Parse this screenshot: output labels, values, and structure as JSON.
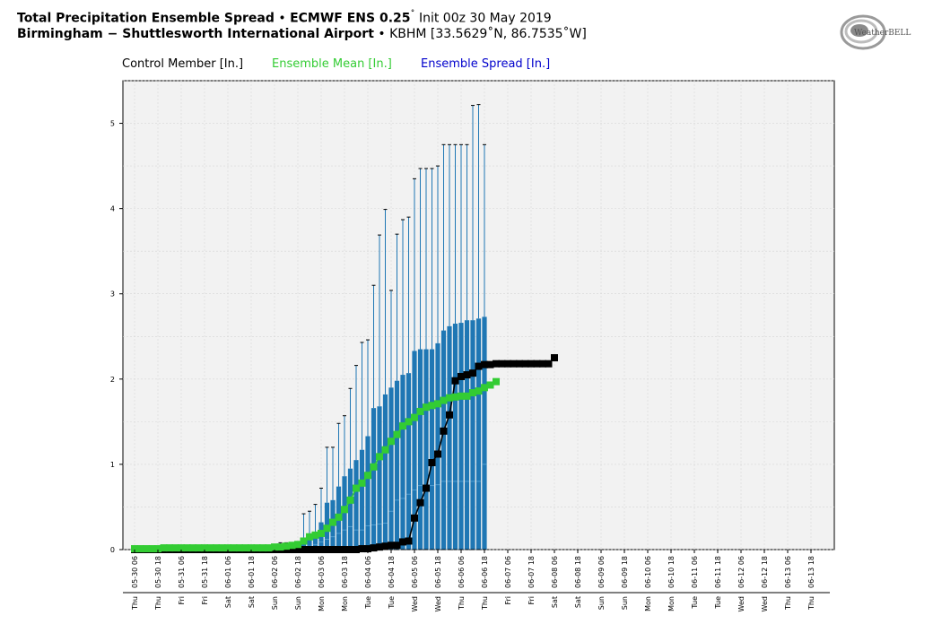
{
  "header": {
    "title_bold": "Total Precipitation Ensemble Spread",
    "title_model": "ECMWF ENS 0.25",
    "title_init": "Init 00z 30 May 2019",
    "location_bold": "Birmingham − Shuttlesworth International Airport",
    "location_detail": "KBHM [33.5629˚N, 86.7535˚W]",
    "separator": "•",
    "degree": "˚"
  },
  "legend": {
    "control": "Control Member [In.]",
    "mean": "Ensemble Mean [In.]",
    "spread": "Ensemble Spread [In.]"
  },
  "logo": {
    "text": "WeatherBELL",
    "icon": "swirl-logo-icon"
  },
  "colors": {
    "control": "#000000",
    "mean": "#33cc33",
    "spread_fill": "#1f77b4",
    "spread_text": "#0000cc",
    "plot_bg": "#f2f2f2"
  },
  "chart_data": {
    "type": "box",
    "ylim": [
      0,
      5.5
    ],
    "yticks": [
      "0",
      "1",
      "2",
      "3",
      "4",
      "5"
    ],
    "grid": true,
    "legend_position": "top",
    "x": [
      "05-30 06",
      "05-30 18",
      "05-31 06",
      "05-31 18",
      "06-01 06",
      "06-01 18",
      "06-02 06",
      "06-02 18",
      "06-03 06",
      "06-03 18",
      "06-04 06",
      "06-04 18",
      "06-05 06",
      "06-05 18",
      "06-06 06",
      "06-06 18",
      "06-07 06",
      "06-07 18",
      "06-08 06",
      "06-08 18",
      "06-09 06",
      "06-09 18",
      "06-10 06",
      "06-10 18",
      "06-11 06",
      "06-11 18",
      "06-12 06",
      "06-12 18",
      "06-13 06",
      "06-13 18"
    ],
    "days": [
      "Thu",
      "Thu",
      "Fri",
      "Fri",
      "Sat",
      "Sat",
      "Sun",
      "Sun",
      "Mon",
      "Mon",
      "Tue",
      "Tue",
      "Wed",
      "Wed",
      "Thu",
      "Thu",
      "Fri",
      "Fri",
      "Sat",
      "Sat",
      "Sun",
      "Sun",
      "Mon",
      "Mon",
      "Tue",
      "Tue",
      "Wed",
      "Wed",
      "Thu",
      "Thu"
    ],
    "series": [
      {
        "name": "Control Member [In.]",
        "values": [
          0,
          0,
          0,
          0,
          0,
          0,
          0,
          0,
          0,
          0,
          0,
          0,
          0,
          0,
          0,
          0,
          0,
          0,
          0,
          0,
          0,
          0,
          0,
          0,
          0,
          0,
          0,
          0,
          0,
          0,
          0,
          0,
          0,
          0,
          0,
          0,
          0,
          0,
          0,
          0.01,
          0.01,
          0.02,
          0.03,
          0.04,
          0.05,
          0.05,
          0.09,
          0.1,
          0.37,
          0.55,
          0.72,
          1.02,
          1.12,
          1.39,
          1.58,
          1.98,
          2.03,
          2.05,
          2.07,
          2.15,
          2.17,
          2.17,
          2.18,
          2.18,
          2.18,
          2.18,
          2.18,
          2.18,
          2.18,
          2.18,
          2.18,
          2.18,
          2.25
        ]
      },
      {
        "name": "Ensemble Mean [In.]",
        "values": [
          0.01,
          0.01,
          0.01,
          0.01,
          0.01,
          0.02,
          0.02,
          0.02,
          0.02,
          0.02,
          0.02,
          0.02,
          0.02,
          0.02,
          0.02,
          0.02,
          0.02,
          0.02,
          0.02,
          0.02,
          0.02,
          0.02,
          0.02,
          0.02,
          0.03,
          0.03,
          0.04,
          0.05,
          0.06,
          0.1,
          0.15,
          0.17,
          0.19,
          0.25,
          0.32,
          0.38,
          0.47,
          0.58,
          0.72,
          0.78,
          0.87,
          0.97,
          1.09,
          1.17,
          1.27,
          1.35,
          1.45,
          1.5,
          1.55,
          1.62,
          1.67,
          1.69,
          1.71,
          1.75,
          1.78,
          1.79,
          1.8,
          1.8,
          1.84,
          1.86,
          1.9,
          1.93,
          1.97
        ]
      },
      {
        "name": "Ensemble Spread [In.]",
        "boxes": [
          [
            0,
            0,
            0,
            0,
            0
          ],
          [
            0,
            0,
            0,
            0,
            0
          ],
          [
            0,
            0,
            0,
            0,
            0
          ],
          [
            0,
            0,
            0,
            0,
            0
          ],
          [
            0,
            0,
            0,
            0,
            0
          ],
          [
            0,
            0,
            0,
            0,
            0
          ],
          [
            0,
            0,
            0,
            0,
            0
          ],
          [
            0,
            0,
            0,
            0,
            0
          ],
          [
            0,
            0,
            0,
            0,
            0
          ],
          [
            0,
            0,
            0,
            0,
            0
          ],
          [
            0,
            0,
            0,
            0,
            0
          ],
          [
            0,
            0,
            0,
            0,
            0
          ],
          [
            0,
            0,
            0,
            0,
            0
          ],
          [
            0,
            0,
            0,
            0,
            0
          ],
          [
            0,
            0,
            0,
            0,
            0
          ],
          [
            0,
            0,
            0,
            0,
            0
          ],
          [
            0,
            0,
            0,
            0,
            0
          ],
          [
            0,
            0,
            0,
            0,
            0
          ],
          [
            0,
            0,
            0,
            0,
            0
          ],
          [
            0,
            0,
            0,
            0,
            0
          ],
          [
            0,
            0,
            0,
            0,
            0
          ],
          [
            0,
            0,
            0,
            0,
            0.01
          ],
          [
            0,
            0,
            0,
            0,
            0.02
          ],
          [
            0,
            0,
            0,
            0,
            0.03
          ],
          [
            0,
            0,
            0,
            0.01,
            0.05
          ],
          [
            0,
            0,
            0,
            0.02,
            0.08
          ],
          [
            0,
            0,
            0,
            0.02,
            0.08
          ],
          [
            0,
            0,
            0,
            0.03,
            0.07
          ],
          [
            0,
            0,
            0,
            0.03,
            0.06
          ],
          [
            0,
            0,
            0.02,
            0.1,
            0.42
          ],
          [
            0,
            0,
            0.04,
            0.13,
            0.45
          ],
          [
            0,
            0,
            0.06,
            0.17,
            0.53
          ],
          [
            0,
            0,
            0.09,
            0.32,
            0.72
          ],
          [
            0,
            0,
            0.12,
            0.55,
            1.2
          ],
          [
            0,
            0,
            0.15,
            0.58,
            1.2
          ],
          [
            0,
            0,
            0.19,
            0.74,
            1.48
          ],
          [
            0,
            0,
            0.23,
            0.86,
            1.57
          ],
          [
            0,
            0,
            0.27,
            0.95,
            1.89
          ],
          [
            0,
            0,
            0.23,
            1.05,
            2.16
          ],
          [
            0,
            0,
            0.23,
            1.17,
            2.43
          ],
          [
            0,
            0,
            0.28,
            1.33,
            2.46
          ],
          [
            0,
            0,
            0.29,
            1.66,
            3.1
          ],
          [
            0,
            0,
            0.3,
            1.68,
            3.69
          ],
          [
            0,
            0,
            0.31,
            1.82,
            3.99
          ],
          [
            0,
            0,
            0.45,
            1.9,
            3.04
          ],
          [
            0,
            0,
            0.58,
            1.98,
            3.7
          ],
          [
            0,
            0,
            0.6,
            2.05,
            3.87
          ],
          [
            0,
            0,
            0.65,
            2.07,
            3.9
          ],
          [
            0,
            0,
            0.7,
            2.33,
            4.35
          ],
          [
            0,
            0,
            0.75,
            2.35,
            4.47
          ],
          [
            0,
            0,
            0.75,
            2.35,
            4.47
          ],
          [
            0,
            0,
            0.75,
            2.35,
            4.47
          ],
          [
            0,
            0,
            0.76,
            2.42,
            4.5
          ],
          [
            0,
            0,
            0.8,
            2.57,
            4.75
          ],
          [
            0,
            0,
            0.8,
            2.62,
            4.75
          ],
          [
            0,
            0,
            0.8,
            2.65,
            4.75
          ],
          [
            0,
            0,
            0.8,
            2.66,
            4.75
          ],
          [
            0,
            0,
            0.8,
            2.69,
            4.75
          ],
          [
            0,
            0,
            0.8,
            2.69,
            5.21
          ],
          [
            0,
            0,
            0.8,
            2.71,
            5.22
          ],
          [
            0,
            0,
            1.0,
            2.73,
            4.75
          ]
        ],
        "box_start_index": 0
      }
    ]
  }
}
